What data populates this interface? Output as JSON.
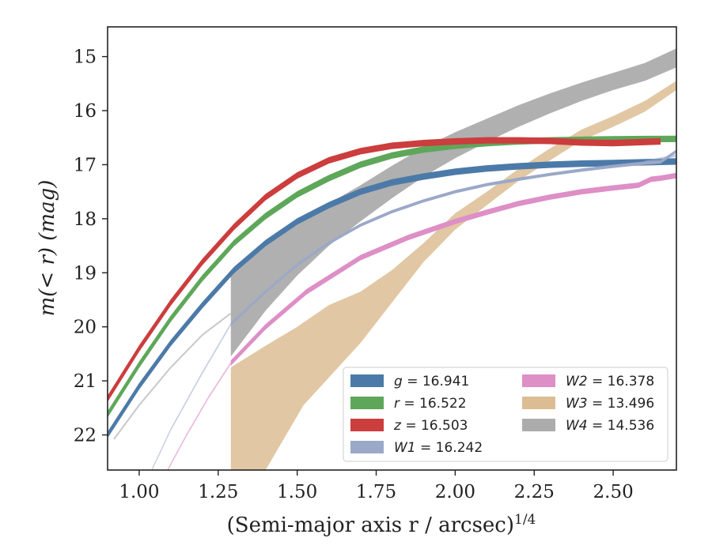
{
  "chart_data": {
    "type": "line",
    "xlabel": "(Semi-major axis r / arcsec)",
    "xlabel_superscript": "1/4",
    "ylabel": "m(< r) (mag)",
    "xlim": [
      0.9,
      2.7
    ],
    "ylim": [
      22.65,
      14.45
    ],
    "y_inverted": true,
    "xticks": [
      "1.00",
      "1.25",
      "1.50",
      "1.75",
      "2.00",
      "2.25",
      "2.50"
    ],
    "xtick_values": [
      1.0,
      1.25,
      1.5,
      1.75,
      2.0,
      2.25,
      2.5
    ],
    "yticks": [
      "15",
      "16",
      "17",
      "18",
      "19",
      "20",
      "21",
      "22"
    ],
    "ytick_values": [
      15,
      16,
      17,
      18,
      19,
      20,
      21,
      22
    ],
    "grid": false,
    "legend_location": "lower-right",
    "colors": {
      "g": "#4c7aa8",
      "r": "#5ea75a",
      "z": "#cc3d3d",
      "W1": "#9ba8c8",
      "W2": "#dd8fc6",
      "W3": "#dcbd93",
      "W4": "#acacac"
    },
    "series": [
      {
        "key": "g",
        "band": "g",
        "value": "16.941",
        "kind": "line",
        "width": 0.12,
        "points": [
          [
            0.9,
            22.0
          ],
          [
            1.0,
            21.1
          ],
          [
            1.1,
            20.3
          ],
          [
            1.2,
            19.6
          ],
          [
            1.3,
            18.95
          ],
          [
            1.4,
            18.45
          ],
          [
            1.5,
            18.05
          ],
          [
            1.6,
            17.75
          ],
          [
            1.7,
            17.5
          ],
          [
            1.8,
            17.33
          ],
          [
            1.9,
            17.22
          ],
          [
            2.0,
            17.13
          ],
          [
            2.1,
            17.07
          ],
          [
            2.2,
            17.03
          ],
          [
            2.3,
            17.0
          ],
          [
            2.4,
            16.98
          ],
          [
            2.5,
            16.97
          ],
          [
            2.6,
            16.955
          ],
          [
            2.7,
            16.941
          ]
        ]
      },
      {
        "key": "r",
        "band": "r",
        "value": "16.522",
        "kind": "line",
        "width": 0.12,
        "points": [
          [
            0.9,
            21.62
          ],
          [
            1.0,
            20.7
          ],
          [
            1.1,
            19.85
          ],
          [
            1.2,
            19.1
          ],
          [
            1.3,
            18.45
          ],
          [
            1.4,
            17.95
          ],
          [
            1.5,
            17.55
          ],
          [
            1.6,
            17.25
          ],
          [
            1.7,
            17.0
          ],
          [
            1.8,
            16.83
          ],
          [
            1.9,
            16.72
          ],
          [
            2.0,
            16.65
          ],
          [
            2.1,
            16.6
          ],
          [
            2.2,
            16.57
          ],
          [
            2.3,
            16.55
          ],
          [
            2.4,
            16.54
          ],
          [
            2.5,
            16.53
          ],
          [
            2.6,
            16.525
          ],
          [
            2.7,
            16.522
          ]
        ]
      },
      {
        "key": "z",
        "band": "z",
        "value": "16.503",
        "kind": "line",
        "width": 0.12,
        "points": [
          [
            0.9,
            21.33
          ],
          [
            1.0,
            20.4
          ],
          [
            1.1,
            19.55
          ],
          [
            1.2,
            18.8
          ],
          [
            1.3,
            18.15
          ],
          [
            1.4,
            17.6
          ],
          [
            1.5,
            17.2
          ],
          [
            1.6,
            16.92
          ],
          [
            1.7,
            16.75
          ],
          [
            1.8,
            16.65
          ],
          [
            1.9,
            16.6
          ],
          [
            2.0,
            16.57
          ],
          [
            2.1,
            16.55
          ],
          [
            2.2,
            16.55
          ],
          [
            2.3,
            16.56
          ],
          [
            2.4,
            16.59
          ],
          [
            2.5,
            16.6
          ],
          [
            2.65,
            16.57
          ]
        ]
      },
      {
        "key": "W1",
        "band": "W1",
        "value": "16.242",
        "kind": "line",
        "width": 0.06,
        "points": [
          [
            1.29,
            19.95
          ],
          [
            1.4,
            19.35
          ],
          [
            1.5,
            18.85
          ],
          [
            1.6,
            18.45
          ],
          [
            1.7,
            18.12
          ],
          [
            1.8,
            17.87
          ],
          [
            1.9,
            17.67
          ],
          [
            2.0,
            17.5
          ],
          [
            2.1,
            17.37
          ],
          [
            2.2,
            17.27
          ],
          [
            2.3,
            17.18
          ],
          [
            2.4,
            17.1
          ],
          [
            2.5,
            17.03
          ],
          [
            2.6,
            16.97
          ],
          [
            2.65,
            16.95
          ],
          [
            2.7,
            16.75
          ]
        ]
      },
      {
        "key": "W1_ext",
        "kind": "faint",
        "width": 0.05,
        "points": [
          [
            1.04,
            22.65
          ],
          [
            1.1,
            21.9
          ],
          [
            1.2,
            20.85
          ],
          [
            1.29,
            19.95
          ]
        ]
      },
      {
        "key": "W1_ext2",
        "kind": "faint",
        "width": 0.05,
        "points": [
          [
            2.6,
            16.95
          ],
          [
            2.7,
            16.83
          ]
        ]
      },
      {
        "key": "W2",
        "band": "W2",
        "value": "16.378",
        "kind": "line",
        "width": 0.1,
        "points": [
          [
            1.29,
            20.67
          ],
          [
            1.4,
            20.0
          ],
          [
            1.53,
            19.35
          ],
          [
            1.7,
            18.72
          ],
          [
            1.85,
            18.35
          ],
          [
            2.0,
            18.05
          ],
          [
            2.1,
            17.88
          ],
          [
            2.2,
            17.72
          ],
          [
            2.3,
            17.6
          ],
          [
            2.4,
            17.5
          ],
          [
            2.5,
            17.43
          ],
          [
            2.58,
            17.38
          ],
          [
            2.62,
            17.27
          ],
          [
            2.65,
            17.25
          ],
          [
            2.7,
            17.2
          ]
        ]
      },
      {
        "key": "W2_ext",
        "kind": "faint_pink",
        "width": 0.05,
        "points": [
          [
            1.09,
            22.65
          ],
          [
            1.15,
            22.0
          ],
          [
            1.22,
            21.3
          ],
          [
            1.29,
            20.67
          ]
        ]
      },
      {
        "key": "W3",
        "band": "W3",
        "value": "13.496",
        "kind": "band",
        "upper": [
          [
            1.29,
            20.75
          ],
          [
            1.4,
            20.35
          ],
          [
            1.5,
            20.0
          ],
          [
            1.6,
            19.6
          ],
          [
            1.7,
            19.35
          ],
          [
            1.8,
            18.95
          ],
          [
            1.9,
            18.45
          ],
          [
            2.0,
            17.9
          ],
          [
            2.1,
            17.5
          ],
          [
            2.2,
            17.08
          ],
          [
            2.3,
            16.7
          ],
          [
            2.4,
            16.35
          ],
          [
            2.5,
            16.1
          ],
          [
            2.6,
            15.82
          ],
          [
            2.7,
            15.45
          ]
        ],
        "lower": [
          [
            1.29,
            22.65
          ],
          [
            1.4,
            22.65
          ],
          [
            1.52,
            21.45
          ],
          [
            1.7,
            20.3
          ],
          [
            1.8,
            19.55
          ],
          [
            1.9,
            18.8
          ],
          [
            2.0,
            18.2
          ],
          [
            2.1,
            17.75
          ],
          [
            2.2,
            17.3
          ],
          [
            2.3,
            16.92
          ],
          [
            2.4,
            16.55
          ],
          [
            2.5,
            16.3
          ],
          [
            2.6,
            16.02
          ],
          [
            2.7,
            15.62
          ]
        ]
      },
      {
        "key": "W4",
        "band": "W4",
        "value": "14.536",
        "kind": "band",
        "upper": [
          [
            1.29,
            18.95
          ],
          [
            1.4,
            18.5
          ],
          [
            1.5,
            18.1
          ],
          [
            1.6,
            17.72
          ],
          [
            1.7,
            17.38
          ],
          [
            1.8,
            17.02
          ],
          [
            1.9,
            16.68
          ],
          [
            2.0,
            16.4
          ],
          [
            2.1,
            16.15
          ],
          [
            2.2,
            15.9
          ],
          [
            2.3,
            15.68
          ],
          [
            2.4,
            15.48
          ],
          [
            2.5,
            15.3
          ],
          [
            2.6,
            15.12
          ],
          [
            2.7,
            14.85
          ]
        ],
        "lower": [
          [
            1.29,
            20.55
          ],
          [
            1.4,
            19.7
          ],
          [
            1.5,
            19.05
          ],
          [
            1.6,
            18.5
          ],
          [
            1.7,
            18.05
          ],
          [
            1.8,
            17.62
          ],
          [
            1.9,
            17.22
          ],
          [
            2.0,
            16.88
          ],
          [
            2.1,
            16.58
          ],
          [
            2.2,
            16.3
          ],
          [
            2.3,
            16.05
          ],
          [
            2.4,
            15.82
          ],
          [
            2.5,
            15.62
          ],
          [
            2.6,
            15.45
          ],
          [
            2.7,
            15.2
          ]
        ]
      }
    ],
    "legend": [
      {
        "band": "g",
        "value": "16.941"
      },
      {
        "band": "r",
        "value": "16.522"
      },
      {
        "band": "z",
        "value": "16.503"
      },
      {
        "band": "W1",
        "value": "16.242"
      },
      {
        "band": "W2",
        "value": "16.378"
      },
      {
        "band": "W3",
        "value": "13.496"
      },
      {
        "band": "W4",
        "value": "14.536"
      }
    ]
  }
}
